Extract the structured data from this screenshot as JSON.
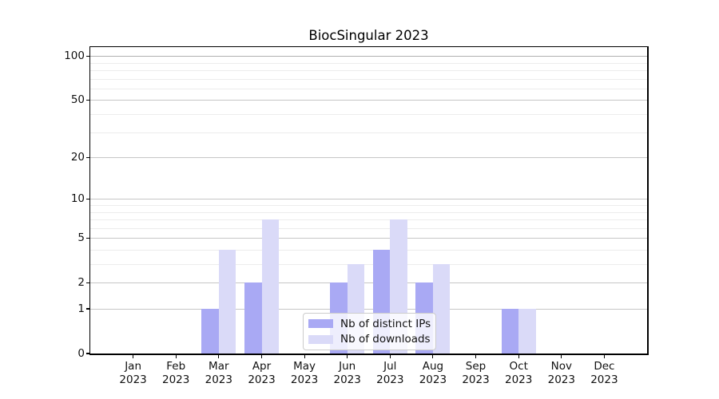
{
  "title": "BiocSingular 2023",
  "colors": {
    "distinct_ips": "#a9a9f4",
    "downloads": "#dadaf8",
    "grid_major": "#c6c6c6",
    "grid_major_top": "#b0b0b0",
    "grid_minor": "#ececec",
    "axis": "#000000",
    "text": "#111111"
  },
  "legend": {
    "items": [
      {
        "label": "Nb of distinct IPs",
        "color_key": "distinct_ips"
      },
      {
        "label": "Nb of downloads",
        "color_key": "downloads"
      }
    ]
  },
  "y_axis": {
    "major_ticks": [
      100,
      50,
      20,
      10,
      5,
      2,
      1,
      0
    ],
    "minor_ticks": [
      3,
      4,
      6,
      7,
      8,
      9,
      30,
      40,
      60,
      70,
      80,
      90
    ],
    "max_value": 115
  },
  "x_axis": {
    "months": [
      "Jan",
      "Feb",
      "Mar",
      "Apr",
      "May",
      "Jun",
      "Jul",
      "Aug",
      "Sep",
      "Oct",
      "Nov",
      "Dec"
    ],
    "year": "2023"
  },
  "chart_data": {
    "type": "bar",
    "title": "BiocSingular 2023",
    "categories": [
      "Jan 2023",
      "Feb 2023",
      "Mar 2023",
      "Apr 2023",
      "May 2023",
      "Jun 2023",
      "Jul 2023",
      "Aug 2023",
      "Sep 2023",
      "Oct 2023",
      "Nov 2023",
      "Dec 2023"
    ],
    "series": [
      {
        "name": "Nb of distinct IPs",
        "color_key": "distinct_ips",
        "values": [
          0,
          0,
          1,
          2,
          0,
          2,
          4,
          2,
          0,
          1,
          0,
          0
        ]
      },
      {
        "name": "Nb of downloads",
        "color_key": "downloads",
        "values": [
          0,
          0,
          4,
          7,
          0,
          3,
          7,
          3,
          0,
          1,
          0,
          0
        ]
      }
    ],
    "yscale": "log1p",
    "ylim": [
      0,
      115
    ],
    "y_ticks": [
      0,
      1,
      2,
      5,
      10,
      20,
      50,
      100
    ],
    "grid": "on",
    "legend_position": "lower center"
  }
}
